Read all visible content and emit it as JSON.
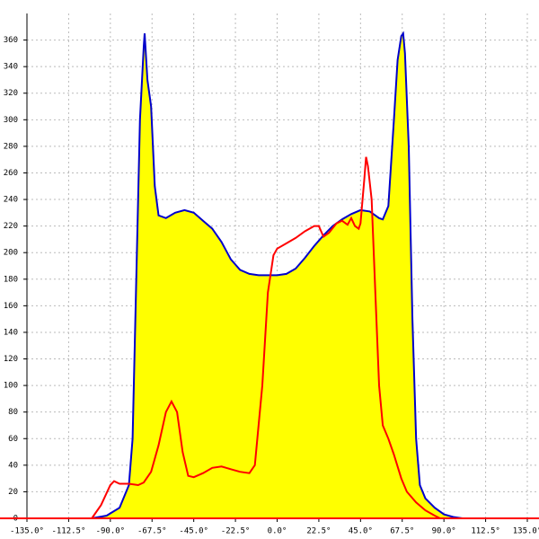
{
  "chart_data": {
    "type": "area",
    "xlim": [
      -135,
      141.3
    ],
    "ylim": [
      0,
      380
    ],
    "xticks": [
      {
        "value": -135,
        "label": "-135.0°"
      },
      {
        "value": -112.5,
        "label": "-112.5°"
      },
      {
        "value": -90,
        "label": "-90.0°"
      },
      {
        "value": -67.5,
        "label": "-67.5°"
      },
      {
        "value": -45,
        "label": "-45.0°"
      },
      {
        "value": -22.5,
        "label": "-22.5°"
      },
      {
        "value": 0,
        "label": "0.0°"
      },
      {
        "value": 22.5,
        "label": "22.5°"
      },
      {
        "value": 45,
        "label": "45.0°"
      },
      {
        "value": 67.5,
        "label": "67.5°"
      },
      {
        "value": 90,
        "label": "90.0°"
      },
      {
        "value": 112.5,
        "label": "112.5°"
      },
      {
        "value": 135,
        "label": "135.0°"
      }
    ],
    "yticks": [
      0,
      20,
      40,
      60,
      80,
      100,
      120,
      140,
      160,
      180,
      200,
      220,
      240,
      260,
      280,
      300,
      320,
      340,
      360
    ],
    "grid": true,
    "series": [
      {
        "kind": "area",
        "color": "#0000cc",
        "fill": "#ffff00",
        "x": [
          -100,
          -92,
          -85,
          -80,
          -78,
          -76,
          -74,
          -72,
          -71.5,
          -70,
          -68,
          -66,
          -64,
          -60,
          -55,
          -50,
          -45,
          -40,
          -35,
          -30,
          -25,
          -20,
          -15,
          -10,
          -5,
          0,
          5,
          10,
          15,
          20,
          25,
          30,
          35,
          40,
          45,
          50,
          55,
          57,
          60,
          63,
          65,
          67,
          68,
          69,
          71,
          73,
          75,
          77,
          80,
          85,
          90,
          95,
          100
        ],
        "values": [
          0,
          2,
          8,
          25,
          60,
          180,
          300,
          355,
          365,
          330,
          310,
          250,
          228,
          226,
          230,
          232,
          230,
          224,
          218,
          208,
          195,
          187,
          184,
          183,
          183,
          183,
          184,
          188,
          196,
          205,
          213,
          220,
          225,
          229,
          232,
          231,
          226,
          225,
          235,
          300,
          345,
          363,
          365,
          350,
          280,
          150,
          60,
          25,
          15,
          8,
          3,
          1,
          0
        ]
      },
      {
        "kind": "line",
        "color": "#ff0000",
        "x": [
          -100,
          -95,
          -90,
          -88,
          -85,
          -80,
          -75,
          -72,
          -68,
          -64,
          -60,
          -57,
          -54,
          -51,
          -48,
          -45,
          -40,
          -35,
          -30,
          -25,
          -20,
          -15,
          -12,
          -8,
          -5,
          -2,
          0,
          5,
          10,
          15,
          20,
          22.5,
          25,
          28,
          32,
          35,
          38,
          40,
          42,
          44,
          45,
          47,
          48,
          49,
          51,
          53,
          55,
          57,
          60,
          63,
          67,
          70,
          75,
          80,
          85,
          88,
          90,
          100
        ],
        "values": [
          0,
          10,
          25,
          28,
          26,
          26,
          25,
          27,
          35,
          55,
          80,
          88,
          80,
          50,
          32,
          31,
          34,
          38,
          39,
          37,
          35,
          34,
          40,
          100,
          170,
          198,
          203,
          207,
          211,
          216,
          220,
          220,
          212,
          215,
          222,
          224,
          221,
          226,
          220,
          218,
          222,
          255,
          272,
          265,
          240,
          170,
          100,
          70,
          60,
          48,
          30,
          20,
          12,
          6,
          2,
          0,
          0,
          0
        ]
      }
    ]
  }
}
